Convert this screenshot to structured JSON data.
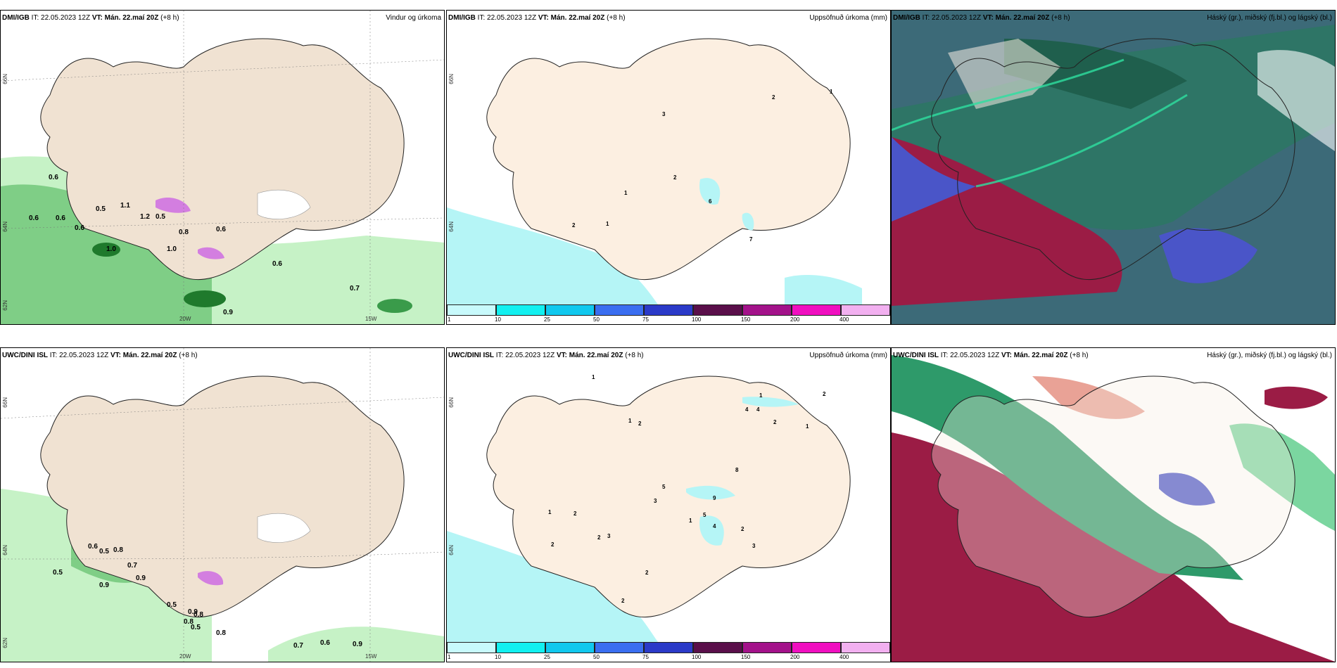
{
  "panels": [
    {
      "model": "DMI/IGB",
      "it_label": "IT:",
      "it": "22.05.2023 12Z",
      "vt_label": "VT:",
      "vt": "Mán. 22.maí 20Z",
      "lead": "(+8 h)",
      "title": "Vindur og úrkoma",
      "lat_labels": [
        "66N",
        "64N",
        "62N"
      ],
      "lon_labels": [
        "20W",
        "15W"
      ],
      "values": [
        "0.6",
        "0.6",
        "0.6",
        "0.5",
        "1.1",
        "1.2",
        "1.0",
        "1.0",
        "0.8",
        "0.6",
        "0.6",
        "0.7",
        "0.9",
        "0.6",
        "0.5"
      ]
    },
    {
      "model": "DMI/IGB",
      "it_label": "IT:",
      "it": "22.05.2023 12Z",
      "vt_label": "VT:",
      "vt": "Mán. 22.maí 20Z",
      "lead": "(+8 h)",
      "title": "Uppsöfnuð úrkoma (mm)",
      "lat_labels": [
        "66N",
        "64N"
      ],
      "values": [
        "2",
        "1",
        "3",
        "2",
        "1",
        "2",
        "1",
        "6",
        "7"
      ]
    },
    {
      "model": "DMI/IGB",
      "it_label": "IT:",
      "it": "22.05.2023 12Z",
      "vt_label": "VT:",
      "vt": "Mán. 22.maí 20Z",
      "lead": "(+8 h)",
      "title": "Háský (gr.), miðský (fj.bl.) og lágský (bl.)"
    },
    {
      "model": "UWC/DINI ISL",
      "it_label": "IT:",
      "it": "22.05.2023 12Z",
      "vt_label": "VT:",
      "vt": "Mán. 22.maí 20Z",
      "lead": "(+8 h)",
      "title": "",
      "lat_labels": [
        "66N",
        "64N",
        "62N"
      ],
      "lon_labels": [
        "20W",
        "15W"
      ],
      "values": [
        "0.6",
        "0.5",
        "0.8",
        "0.5",
        "0.5",
        "0.9",
        "0.7",
        "0.9",
        "0.9",
        "0.5",
        "0.8",
        "0.8",
        "0.8",
        "0.7",
        "0.6",
        "0.9"
      ]
    },
    {
      "model": "UWC/DINI ISL",
      "it_label": "IT:",
      "it": "22.05.2023 12Z",
      "vt_label": "VT:",
      "vt": "Mán. 22.maí 20Z",
      "lead": "(+8 h)",
      "title": "Uppsöfnuð úrkoma (mm)",
      "lat_labels": [
        "66N",
        "64N"
      ],
      "values": [
        "1",
        "1",
        "2",
        "4",
        "4",
        "2",
        "1",
        "8",
        "5",
        "3",
        "1",
        "2",
        "1",
        "2",
        "2",
        "2",
        "3",
        "2",
        "4",
        "5",
        "1",
        "2",
        "9",
        "2",
        "3"
      ]
    },
    {
      "model": "UWC/DINI ISL",
      "it_label": "IT:",
      "it": "22.05.2023 12Z",
      "vt_label": "VT:",
      "vt": "Mán. 22.maí 20Z",
      "lead": "(+8 h)",
      "title": "Háský (gr.), miðský (fj.bl.) og lágský (bl.)"
    }
  ],
  "colorbar": {
    "labels": [
      "1",
      "10",
      "25",
      "50",
      "75",
      "100",
      "150",
      "200",
      "400"
    ],
    "colors": [
      "#c8fafc",
      "#12f0f0",
      "#10c8ee",
      "#3a6ef0",
      "#2b3ac8",
      "#5a0f4a",
      "#a3128a",
      "#f00fc0",
      "#f2b0f0"
    ]
  },
  "colors": {
    "land": "#f7ede3",
    "precip_light": "#c6f2c6",
    "precip_mid": "#7fce86",
    "precip_dark": "#1f7a2c",
    "sea_precip": "#b5f5f6",
    "cloud_high": "#1f5f4d",
    "cloud_mid": "#9b1c45",
    "cloud_low": "#4a55c8"
  }
}
